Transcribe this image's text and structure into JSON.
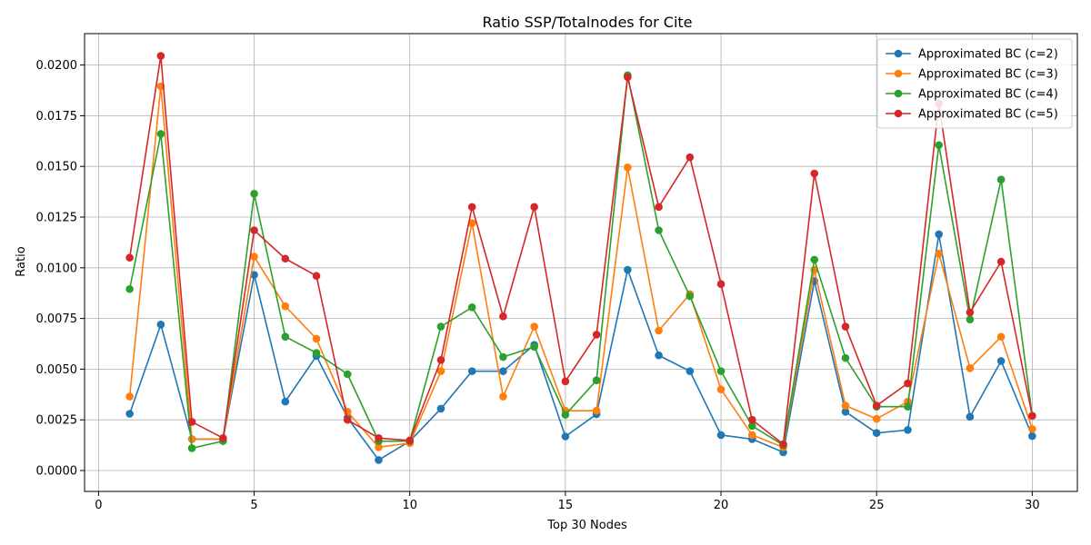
{
  "chart_data": {
    "type": "line",
    "title": "Ratio SSP/Totalnodes for Cite",
    "xlabel": "Top 30 Nodes",
    "ylabel": "Ratio",
    "xlim": [
      -0.45,
      31.45
    ],
    "ylim": [
      -0.00103,
      0.02155
    ],
    "xticks": [
      0,
      5,
      10,
      15,
      20,
      25,
      30
    ],
    "xtick_labels": [
      "0",
      "5",
      "10",
      "15",
      "20",
      "25",
      "30"
    ],
    "yticks": [
      0.0,
      0.0025,
      0.005,
      0.0075,
      0.01,
      0.0125,
      0.015,
      0.0175,
      0.02
    ],
    "ytick_labels": [
      "0.0000",
      "0.0025",
      "0.0050",
      "0.0075",
      "0.0100",
      "0.0125",
      "0.0150",
      "0.0175",
      "0.0200"
    ],
    "grid": true,
    "legend_position": "top-right",
    "x": [
      1,
      2,
      3,
      4,
      5,
      6,
      7,
      8,
      9,
      10,
      11,
      12,
      13,
      14,
      15,
      16,
      17,
      18,
      19,
      20,
      21,
      22,
      23,
      24,
      25,
      26,
      27,
      28,
      29,
      30
    ],
    "series": [
      {
        "name": "Approximated BC (c=2)",
        "color": "#1f77b4",
        "values": [
          0.0028,
          0.0072,
          0.00155,
          0.00155,
          0.00965,
          0.0034,
          0.00565,
          0.0026,
          0.00052,
          0.00145,
          0.00305,
          0.0049,
          0.0049,
          0.0062,
          0.00168,
          0.00278,
          0.0099,
          0.00568,
          0.0049,
          0.00175,
          0.00155,
          0.0009,
          0.00935,
          0.0029,
          0.00185,
          0.002,
          0.01165,
          0.00265,
          0.0054,
          0.0017
        ]
      },
      {
        "name": "Approximated BC (c=3)",
        "color": "#ff7f0e",
        "values": [
          0.00365,
          0.01895,
          0.00155,
          0.00155,
          0.01055,
          0.0081,
          0.0065,
          0.0029,
          0.00115,
          0.00135,
          0.0049,
          0.0122,
          0.00365,
          0.0071,
          0.00295,
          0.00295,
          0.01495,
          0.0069,
          0.0087,
          0.004,
          0.00175,
          0.00115,
          0.0099,
          0.0032,
          0.00255,
          0.0034,
          0.0107,
          0.00505,
          0.0066,
          0.00205
        ]
      },
      {
        "name": "Approximated BC (c=4)",
        "color": "#2ca02c",
        "values": [
          0.00895,
          0.0166,
          0.0011,
          0.00145,
          0.01365,
          0.0066,
          0.0058,
          0.00475,
          0.00145,
          0.00145,
          0.0071,
          0.00805,
          0.0056,
          0.0061,
          0.00275,
          0.00445,
          0.0195,
          0.01185,
          0.0086,
          0.0049,
          0.0022,
          0.00125,
          0.0104,
          0.00555,
          0.00315,
          0.00315,
          0.01605,
          0.00745,
          0.01435,
          0.0027
        ]
      },
      {
        "name": "Approximated BC (c=5)",
        "color": "#d62728",
        "values": [
          0.0105,
          0.02045,
          0.0024,
          0.0016,
          0.01185,
          0.01045,
          0.0096,
          0.0025,
          0.0016,
          0.00148,
          0.00545,
          0.013,
          0.0076,
          0.013,
          0.0044,
          0.0067,
          0.0194,
          0.013,
          0.01545,
          0.0092,
          0.0025,
          0.0013,
          0.01465,
          0.0071,
          0.0032,
          0.0043,
          0.0181,
          0.0078,
          0.0103,
          0.0027
        ]
      }
    ]
  }
}
